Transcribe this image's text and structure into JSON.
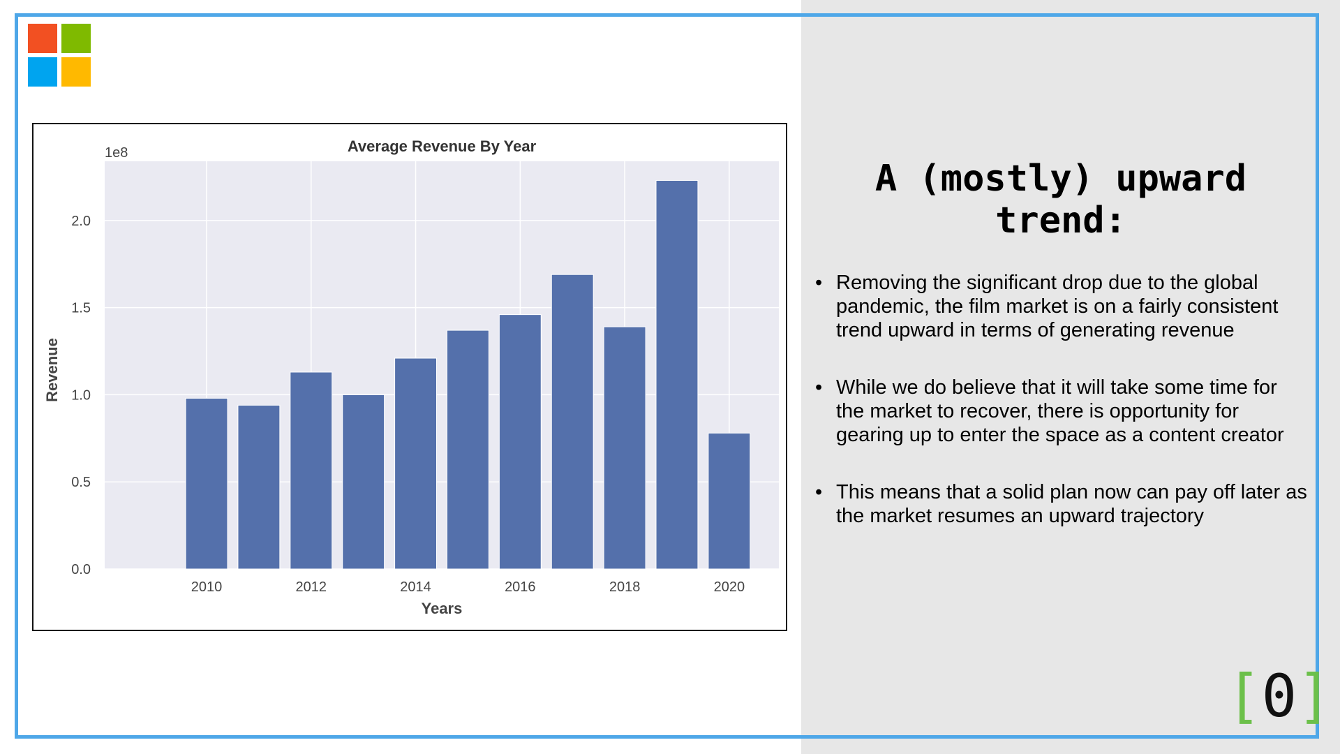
{
  "colors": {
    "frame": "#4ea7e8",
    "panel": "#e7e7e7",
    "bar": "#5470ab",
    "plot_bg": "#eaeaf2",
    "logo": [
      "#f25022",
      "#7fba00",
      "#00a4ef",
      "#ffb900"
    ],
    "bracket": "#6cc04a"
  },
  "logo": {
    "icon": "microsoft-logo-icon"
  },
  "heading": "A (mostly) upward trend:",
  "bullets": [
    "Removing the significant drop due to the global pandemic, the film market is on a fairly consistent trend upward in terms of generating revenue",
    "While we do believe that it will take some time for the market to recover, there is opportunity for gearing up to enter the space as a content creator",
    "This means that a solid plan now can pay off later as the market resumes an upward trajectory"
  ],
  "bullet_glyph": "•",
  "brand_mark": {
    "left": "[",
    "center": "0",
    "right": "]"
  },
  "chart_data": {
    "type": "bar",
    "title": "Average Revenue By Year",
    "xlabel": "Years",
    "ylabel": "Revenue",
    "offset_label": "1e8",
    "x": [
      2010,
      2011,
      2012,
      2013,
      2014,
      2015,
      2016,
      2017,
      2018,
      2019,
      2020
    ],
    "values": [
      0.98,
      0.94,
      1.13,
      1.0,
      1.21,
      1.37,
      1.46,
      1.69,
      1.39,
      2.23,
      0.78
    ],
    "xticks": [
      "2010",
      "2012",
      "2014",
      "2016",
      "2018",
      "2020"
    ],
    "yticks": [
      "0.0",
      "0.5",
      "1.0",
      "1.5",
      "2.0"
    ],
    "xlim": [
      2008.05,
      2020.95
    ],
    "ylim": [
      0,
      2.34
    ],
    "grid": true,
    "legend": "none"
  }
}
